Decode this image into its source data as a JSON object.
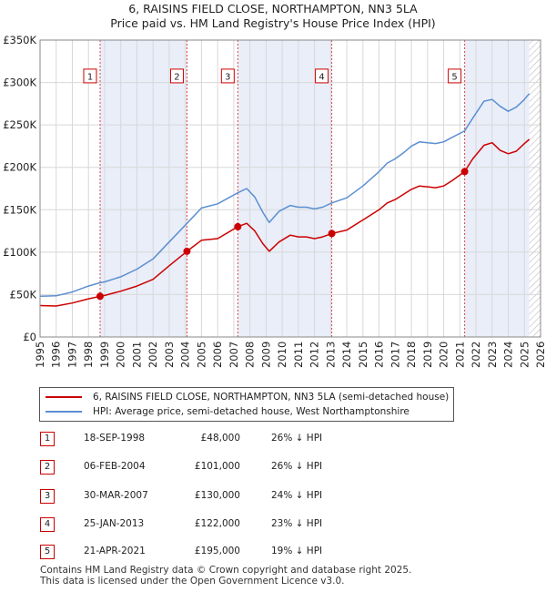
{
  "title": {
    "line1": "6, RAISINS FIELD CLOSE, NORTHAMPTON, NN3 5LA",
    "line2": "Price paid vs. HM Land Registry's House Price Index (HPI)"
  },
  "chart_data": {
    "type": "line",
    "xlim": [
      1995,
      2026
    ],
    "ylim": [
      0,
      350000
    ],
    "yticks": [
      {
        "value": 0,
        "label": "£0"
      },
      {
        "value": 50000,
        "label": "£50K"
      },
      {
        "value": 100000,
        "label": "£100K"
      },
      {
        "value": 150000,
        "label": "£150K"
      },
      {
        "value": 200000,
        "label": "£200K"
      },
      {
        "value": 250000,
        "label": "£250K"
      },
      {
        "value": 300000,
        "label": "£300K"
      },
      {
        "value": 350000,
        "label": "£350K"
      }
    ],
    "xticks": [
      1995,
      1996,
      1997,
      1998,
      1999,
      2000,
      2001,
      2002,
      2003,
      2004,
      2005,
      2006,
      2007,
      2008,
      2009,
      2010,
      2011,
      2012,
      2013,
      2014,
      2015,
      2016,
      2017,
      2018,
      2019,
      2020,
      2021,
      2022,
      2023,
      2024,
      2025,
      2026
    ],
    "shaded_periods": [
      [
        1998.72,
        2004.1
      ],
      [
        2007.25,
        2013.07
      ],
      [
        2021.3,
        2025.3
      ]
    ],
    "hatched_from": 2025.3,
    "series": [
      {
        "name": "6, RAISINS FIELD CLOSE, NORTHAMPTON, NN3 5LA (semi-detached house)",
        "color": "#cc0000",
        "points": [
          [
            1995,
            37000
          ],
          [
            1996,
            36500
          ],
          [
            1997,
            40000
          ],
          [
            1998,
            45000
          ],
          [
            1998.72,
            48000
          ],
          [
            1999,
            49000
          ],
          [
            2000,
            54000
          ],
          [
            2001,
            60000
          ],
          [
            2002,
            68000
          ],
          [
            2003,
            84000
          ],
          [
            2004.1,
            101000
          ],
          [
            2005,
            114000
          ],
          [
            2006,
            116000
          ],
          [
            2007.25,
            130000
          ],
          [
            2007.8,
            134000
          ],
          [
            2008.3,
            125000
          ],
          [
            2008.8,
            110000
          ],
          [
            2009.2,
            101000
          ],
          [
            2009.8,
            112000
          ],
          [
            2010.5,
            120000
          ],
          [
            2011,
            118000
          ],
          [
            2011.5,
            118000
          ],
          [
            2012,
            116000
          ],
          [
            2012.5,
            118000
          ],
          [
            2013.07,
            122000
          ],
          [
            2014,
            126000
          ],
          [
            2015,
            138000
          ],
          [
            2016,
            150000
          ],
          [
            2016.5,
            158000
          ],
          [
            2017,
            162000
          ],
          [
            2017.5,
            168000
          ],
          [
            2018,
            174000
          ],
          [
            2018.5,
            178000
          ],
          [
            2019,
            177000
          ],
          [
            2019.5,
            176000
          ],
          [
            2020,
            178000
          ],
          [
            2020.5,
            184000
          ],
          [
            2021.3,
            195000
          ],
          [
            2021.8,
            210000
          ],
          [
            2022.5,
            226000
          ],
          [
            2023,
            229000
          ],
          [
            2023.5,
            220000
          ],
          [
            2024,
            216000
          ],
          [
            2024.5,
            219000
          ],
          [
            2025,
            228000
          ],
          [
            2025.3,
            233000
          ]
        ]
      },
      {
        "name": "HPI: Average price, semi-detached house, West Northamptonshire",
        "color": "#5b8fd0",
        "points": [
          [
            1995,
            48000
          ],
          [
            1996,
            48500
          ],
          [
            1997,
            53000
          ],
          [
            1998,
            60000
          ],
          [
            1998.72,
            64000
          ],
          [
            1999,
            65000
          ],
          [
            2000,
            71000
          ],
          [
            2001,
            80000
          ],
          [
            2002,
            92000
          ],
          [
            2003,
            112000
          ],
          [
            2004.1,
            134000
          ],
          [
            2005,
            152000
          ],
          [
            2006,
            157000
          ],
          [
            2007.25,
            170000
          ],
          [
            2007.8,
            175000
          ],
          [
            2008.3,
            165000
          ],
          [
            2008.8,
            147000
          ],
          [
            2009.2,
            135000
          ],
          [
            2009.8,
            148000
          ],
          [
            2010.5,
            155000
          ],
          [
            2011,
            153000
          ],
          [
            2011.5,
            153000
          ],
          [
            2012,
            151000
          ],
          [
            2012.5,
            153000
          ],
          [
            2013.07,
            158000
          ],
          [
            2014,
            164000
          ],
          [
            2015,
            178000
          ],
          [
            2016,
            195000
          ],
          [
            2016.5,
            205000
          ],
          [
            2017,
            210000
          ],
          [
            2017.5,
            217000
          ],
          [
            2018,
            225000
          ],
          [
            2018.5,
            230000
          ],
          [
            2019,
            229000
          ],
          [
            2019.5,
            228000
          ],
          [
            2020,
            230000
          ],
          [
            2020.5,
            235000
          ],
          [
            2021.3,
            243000
          ],
          [
            2021.8,
            258000
          ],
          [
            2022.5,
            278000
          ],
          [
            2023,
            280000
          ],
          [
            2023.5,
            272000
          ],
          [
            2024,
            266000
          ],
          [
            2024.5,
            271000
          ],
          [
            2025,
            280000
          ],
          [
            2025.3,
            287000
          ]
        ]
      }
    ],
    "sales": [
      {
        "num": "1",
        "x": 1998.72,
        "price": 48000
      },
      {
        "num": "2",
        "x": 2004.1,
        "price": 101000
      },
      {
        "num": "3",
        "x": 2007.25,
        "price": 130000
      },
      {
        "num": "4",
        "x": 2013.07,
        "price": 122000
      },
      {
        "num": "5",
        "x": 2021.3,
        "price": 195000
      }
    ],
    "marker_label_value": 305000
  },
  "legend": {
    "property_label": "6, RAISINS FIELD CLOSE, NORTHAMPTON, NN3 5LA (semi-detached house)",
    "hpi_label": "HPI: Average price, semi-detached house, West Northamptonshire",
    "property_color": "#cc0000",
    "hpi_color": "#5b8fd0"
  },
  "sales_table": [
    {
      "num": "1",
      "date": "18-SEP-1998",
      "price": "£48,000",
      "hpi": "26% ↓ HPI"
    },
    {
      "num": "2",
      "date": "06-FEB-2004",
      "price": "£101,000",
      "hpi": "26% ↓ HPI"
    },
    {
      "num": "3",
      "date": "30-MAR-2007",
      "price": "£130,000",
      "hpi": "24% ↓ HPI"
    },
    {
      "num": "4",
      "date": "25-JAN-2013",
      "price": "£122,000",
      "hpi": "23% ↓ HPI"
    },
    {
      "num": "5",
      "date": "21-APR-2021",
      "price": "£195,000",
      "hpi": "19% ↓ HPI"
    }
  ],
  "footer": {
    "line1": "Contains HM Land Registry data © Crown copyright and database right 2025.",
    "line2": "This data is licensed under the Open Government Licence v3.0."
  }
}
